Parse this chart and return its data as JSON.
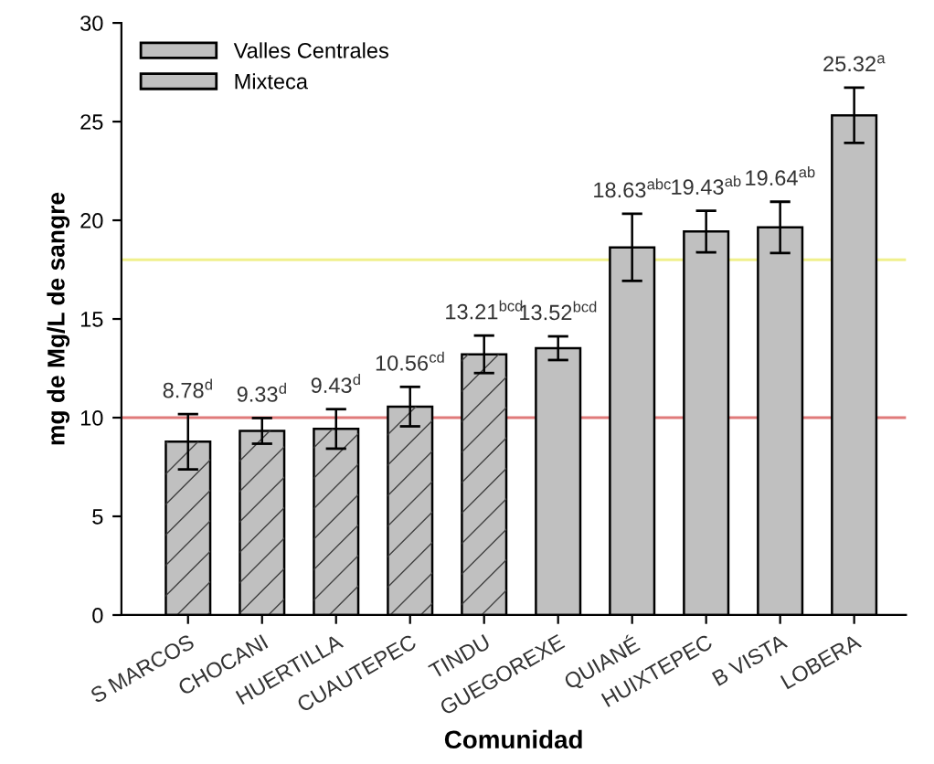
{
  "chart_data": {
    "type": "bar",
    "xlabel": "Comunidad",
    "ylabel": "mg de Mg/L de sangre",
    "categories": [
      "S MARCOS",
      "CHOCANI",
      "HUERTILLA",
      "CUAUTEPEC",
      "TINDU",
      "GUEGOREXE",
      "QUIANÉ",
      "HUIXTEPEC",
      "B VISTA",
      "LOBERA"
    ],
    "series": [
      {
        "name": "Valles Centrales",
        "color": "#c0c0c0",
        "values": [
          null,
          null,
          null,
          null,
          null,
          13.52,
          18.63,
          19.43,
          19.64,
          25.32
        ],
        "errors": [
          null,
          null,
          null,
          null,
          null,
          0.6,
          1.7,
          1.05,
          1.3,
          1.4
        ],
        "value_labels": [
          null,
          null,
          null,
          null,
          null,
          "13.52$^{bcd}$",
          "18.63$^{abc}$",
          "19.43$^{ab}$",
          "19.64$^{ab}$",
          "25.32$^{a}$"
        ]
      },
      {
        "name": "Mixteca",
        "color": "#c0c0c0",
        "values": [
          8.78,
          9.33,
          9.43,
          10.56,
          13.21,
          null,
          null,
          null,
          null,
          null
        ],
        "errors": [
          1.4,
          0.65,
          1.0,
          1.0,
          0.95,
          null,
          null,
          null,
          null,
          null
        ],
        "value_labels": [
          "8.78$^{d}$",
          "9.33$^{d}$",
          "9.43$^{d}$",
          "10.56$^{cd}$",
          "13.21$^{bcd}$",
          null,
          null,
          null,
          null,
          null
        ]
      }
    ],
    "ylim": [
      0,
      30
    ],
    "yticks": [
      0,
      5,
      10,
      15,
      20,
      25,
      30
    ],
    "ref_lines": [
      {
        "axis": "y",
        "value": 18,
        "color": "#f0f08c"
      },
      {
        "axis": "y",
        "value": 10,
        "color": "#e07a7a"
      }
    ],
    "legend": "top left",
    "grid": false
  }
}
